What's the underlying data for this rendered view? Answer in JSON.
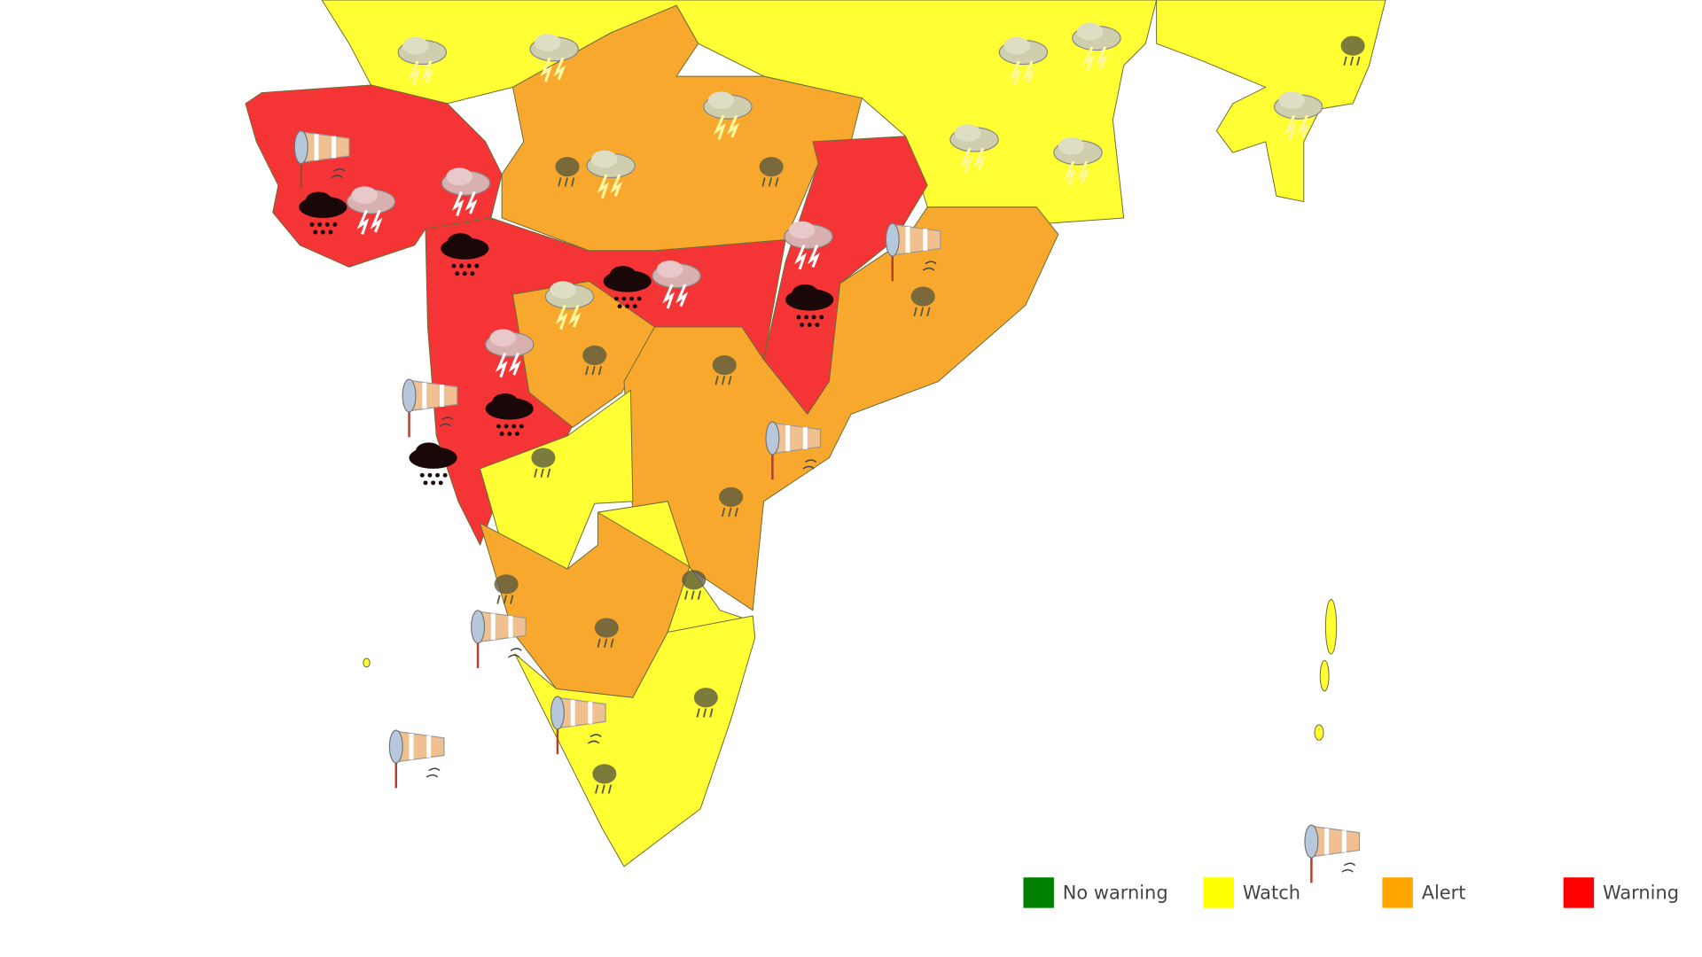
{
  "legend": {
    "items": [
      {
        "label": "No warning",
        "color": "#008000"
      },
      {
        "label": "Watch",
        "color": "#ffff00"
      },
      {
        "label": "Alert",
        "color": "#ffa500"
      },
      {
        "label": "Warning",
        "color": "#ff0000"
      }
    ]
  }
}
